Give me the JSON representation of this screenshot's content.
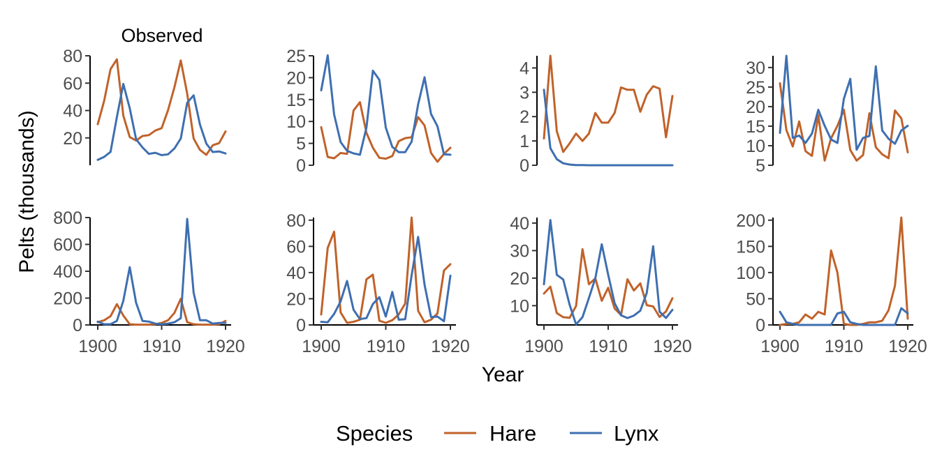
{
  "chart_data": {
    "type": "line",
    "xlabel": "Year",
    "ylabel": "Pelts (thousands)",
    "legend": {
      "title": "Species",
      "position": "bottom"
    },
    "colors": {
      "Hare": "#C0622A",
      "Lynx": "#3E6FB0"
    },
    "x_ticks": [
      1900,
      1910,
      1920
    ],
    "xlim": [
      1900,
      1920
    ],
    "panels": [
      {
        "title": "Observed",
        "ylim": [
          0,
          80
        ],
        "yticks": [
          20,
          40,
          60,
          80
        ],
        "series": [
          {
            "name": "Hare",
            "values": [
              30,
              47.2,
              70.2,
              77.4,
              36.3,
              20.6,
              18.1,
              21.4,
              22,
              25.4,
              27.1,
              40.3,
              57,
              76.6,
              52.3,
              19.5,
              11.2,
              7.6,
              14.6,
              16.2,
              24.7
            ]
          },
          {
            "name": "Lynx",
            "values": [
              4,
              6.1,
              9.8,
              35.2,
              59.4,
              41.7,
              19,
              13,
              8.3,
              9.1,
              7.4,
              8,
              12.3,
              19.5,
              45.7,
              51.1,
              29.7,
              15.8,
              9.7,
              10.1,
              8.6
            ]
          }
        ]
      },
      {
        "title": "",
        "ylim": [
          0,
          25
        ],
        "yticks": [
          0,
          5,
          10,
          15,
          20,
          25
        ],
        "series": [
          {
            "name": "Hare",
            "values": [
              8.7,
              1.9,
              1.6,
              2.8,
              2.6,
              12.5,
              14.4,
              7.4,
              4,
              1.7,
              1.5,
              2.1,
              5.5,
              6.2,
              6.4,
              11,
              9.1,
              2.8,
              0.8,
              2.6,
              4
            ]
          },
          {
            "name": "Lynx",
            "values": [
              17.1,
              25.1,
              11.6,
              5.3,
              3.3,
              2.7,
              2.4,
              8.6,
              21.6,
              19.5,
              8.6,
              4.2,
              3,
              3,
              5.4,
              13.9,
              20.1,
              11.7,
              8.9,
              2.5,
              2.4
            ]
          }
        ]
      },
      {
        "title": "",
        "ylim": [
          0,
          4.5
        ],
        "yticks": [
          0,
          1,
          2,
          3,
          4
        ],
        "series": [
          {
            "name": "Hare",
            "values": [
              1.1,
              4.5,
              1.4,
              0.55,
              0.9,
              1.3,
              1,
              1.3,
              2.15,
              1.75,
              1.75,
              2.15,
              3.2,
              3.1,
              3.1,
              2.2,
              2.9,
              3.25,
              3.15,
              1.15,
              2.85
            ]
          },
          {
            "name": "Lynx",
            "values": [
              3.1,
              0.7,
              0.25,
              0.08,
              0.03,
              0.01,
              0.005,
              0,
              0,
              0,
              0,
              0,
              0,
              0,
              0,
              0,
              0,
              0,
              0,
              0,
              0
            ]
          }
        ]
      },
      {
        "title": "",
        "ylim": [
          5,
          33
        ],
        "yticks": [
          5,
          10,
          15,
          20,
          25,
          30
        ],
        "series": [
          {
            "name": "Hare",
            "values": [
              26,
              14,
              9.8,
              16.2,
              8.6,
              7.4,
              17.8,
              6.2,
              11.9,
              15.1,
              19.2,
              8.9,
              6.2,
              7.6,
              18.3,
              9.6,
              7.8,
              6.8,
              19,
              17,
              8.3
            ]
          },
          {
            "name": "Lynx",
            "values": [
              13.3,
              33,
              12,
              12.6,
              10.7,
              13.1,
              19.2,
              15.1,
              11.6,
              10.7,
              22,
              27.1,
              9,
              12,
              12.5,
              30.3,
              13.9,
              11.8,
              10.5,
              13.9,
              15.1
            ]
          }
        ]
      },
      {
        "title": "",
        "ylim": [
          0,
          800
        ],
        "yticks": [
          0,
          200,
          400,
          600,
          800
        ],
        "series": [
          {
            "name": "Hare",
            "values": [
              20,
              35,
              65,
              155,
              70,
              5,
              2,
              2,
              2,
              5,
              15,
              35,
              90,
              195,
              20,
              5,
              2,
              2,
              2,
              5,
              30
            ]
          },
          {
            "name": "Lynx",
            "values": [
              25,
              5,
              5,
              30,
              180,
              430,
              165,
              30,
              25,
              10,
              5,
              10,
              20,
              50,
              790,
              240,
              35,
              35,
              10,
              15,
              15
            ]
          }
        ]
      },
      {
        "title": "",
        "ylim": [
          0,
          82
        ],
        "yticks": [
          0,
          20,
          40,
          60,
          80
        ],
        "series": [
          {
            "name": "Hare",
            "values": [
              8,
              58.8,
              71.2,
              9.6,
              1.6,
              2.4,
              4,
              34.8,
              38.4,
              3.2,
              1.6,
              3.6,
              8,
              16.4,
              82,
              10.8,
              2,
              4,
              8.8,
              41.6,
              46.4
            ]
          },
          {
            "name": "Lynx",
            "values": [
              2.4,
              2,
              8.4,
              18,
              33.6,
              11.6,
              4.4,
              5.2,
              16,
              21.2,
              6.4,
              25.2,
              4,
              4.4,
              38,
              67.2,
              30.8,
              6,
              6.4,
              2.8,
              37.6
            ]
          }
        ]
      },
      {
        "title": "",
        "ylim": [
          3,
          42
        ],
        "yticks": [
          10,
          20,
          30,
          40
        ],
        "series": [
          {
            "name": "Hare",
            "values": [
              14.4,
              16.9,
              7.3,
              5.8,
              5.6,
              9.9,
              30.5,
              17.8,
              19.9,
              11.8,
              16.5,
              9,
              6.6,
              19.6,
              15.5,
              18.1,
              10.2,
              9.7,
              5.9,
              7.9,
              12.7
            ]
          },
          {
            "name": "Lynx",
            "values": [
              17.8,
              41.1,
              21.2,
              19.5,
              10.3,
              3.2,
              5.8,
              12.8,
              20,
              32.3,
              21.2,
              10.9,
              6.5,
              5.5,
              6.4,
              8.2,
              14.6,
              31.6,
              7.8,
              5.5,
              8.5
            ]
          }
        ]
      },
      {
        "title": "",
        "ylim": [
          0,
          205
        ],
        "yticks": [
          0,
          50,
          100,
          150,
          200
        ],
        "series": [
          {
            "name": "Hare",
            "values": [
              0,
              2,
              2,
              5,
              20,
              12,
              25,
              20,
              142,
              100,
              2,
              0,
              0,
              2,
              5,
              5,
              8,
              28,
              75,
              205,
              12
            ]
          },
          {
            "name": "Lynx",
            "values": [
              25,
              5,
              2,
              0,
              0,
              0,
              0,
              0,
              0,
              22,
              25,
              5,
              2,
              0,
              0,
              0,
              0,
              0,
              0,
              32,
              22
            ]
          }
        ]
      }
    ]
  }
}
